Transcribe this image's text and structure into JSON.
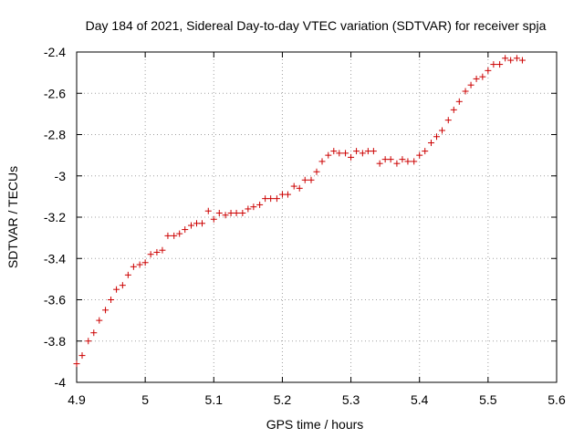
{
  "chart_data": {
    "type": "scatter",
    "title": "Day 184 of 2021, Sidereal Day-to-day VTEC variation (SDTVAR) for receiver spja",
    "xlabel": "GPS time / hours",
    "ylabel": "SDTVAR / TECUs",
    "xlim": [
      4.9,
      5.6
    ],
    "ylim": [
      -4.0,
      -2.4
    ],
    "xticks": [
      "4.9",
      "5",
      "5.1",
      "5.2",
      "5.3",
      "5.4",
      "5.5",
      "5.6"
    ],
    "yticks": [
      "-2.4",
      "-2.6",
      "-2.8",
      "-3",
      "-3.2",
      "-3.4",
      "-3.6",
      "-3.8",
      "-4"
    ],
    "grid": true,
    "marker": "+",
    "color": "#cc0000",
    "series": [
      {
        "name": "SDTVAR",
        "x": [
          4.9,
          4.908,
          4.917,
          4.925,
          4.933,
          4.942,
          4.95,
          4.958,
          4.967,
          4.975,
          4.983,
          4.992,
          5.0,
          5.008,
          5.017,
          5.025,
          5.033,
          5.042,
          5.05,
          5.058,
          5.067,
          5.075,
          5.083,
          5.092,
          5.1,
          5.108,
          5.117,
          5.125,
          5.133,
          5.142,
          5.15,
          5.158,
          5.167,
          5.175,
          5.183,
          5.192,
          5.2,
          5.208,
          5.217,
          5.225,
          5.233,
          5.242,
          5.25,
          5.258,
          5.267,
          5.275,
          5.283,
          5.292,
          5.3,
          5.308,
          5.317,
          5.325,
          5.333,
          5.342,
          5.35,
          5.358,
          5.367,
          5.375,
          5.383,
          5.392,
          5.4,
          5.408,
          5.417,
          5.425,
          5.433,
          5.442,
          5.45,
          5.458,
          5.467,
          5.475,
          5.483,
          5.492,
          5.5,
          5.508,
          5.517,
          5.525,
          5.533,
          5.542,
          5.55
        ],
        "y": [
          -3.91,
          -3.87,
          -3.8,
          -3.76,
          -3.7,
          -3.65,
          -3.6,
          -3.55,
          -3.53,
          -3.48,
          -3.44,
          -3.43,
          -3.42,
          -3.38,
          -3.37,
          -3.36,
          -3.29,
          -3.29,
          -3.28,
          -3.26,
          -3.24,
          -3.23,
          -3.23,
          -3.17,
          -3.21,
          -3.18,
          -3.19,
          -3.18,
          -3.18,
          -3.18,
          -3.16,
          -3.15,
          -3.14,
          -3.11,
          -3.11,
          -3.11,
          -3.09,
          -3.09,
          -3.05,
          -3.06,
          -3.02,
          -3.02,
          -2.98,
          -2.93,
          -2.9,
          -2.88,
          -2.89,
          -2.89,
          -2.91,
          -2.88,
          -2.89,
          -2.88,
          -2.88,
          -2.94,
          -2.92,
          -2.92,
          -2.94,
          -2.92,
          -2.93,
          -2.93,
          -2.9,
          -2.88,
          -2.84,
          -2.81,
          -2.78,
          -2.73,
          -2.68,
          -2.64,
          -2.59,
          -2.56,
          -2.53,
          -2.52,
          -2.49,
          -2.46,
          -2.46,
          -2.43,
          -2.44,
          -2.43,
          -2.44
        ]
      }
    ]
  }
}
